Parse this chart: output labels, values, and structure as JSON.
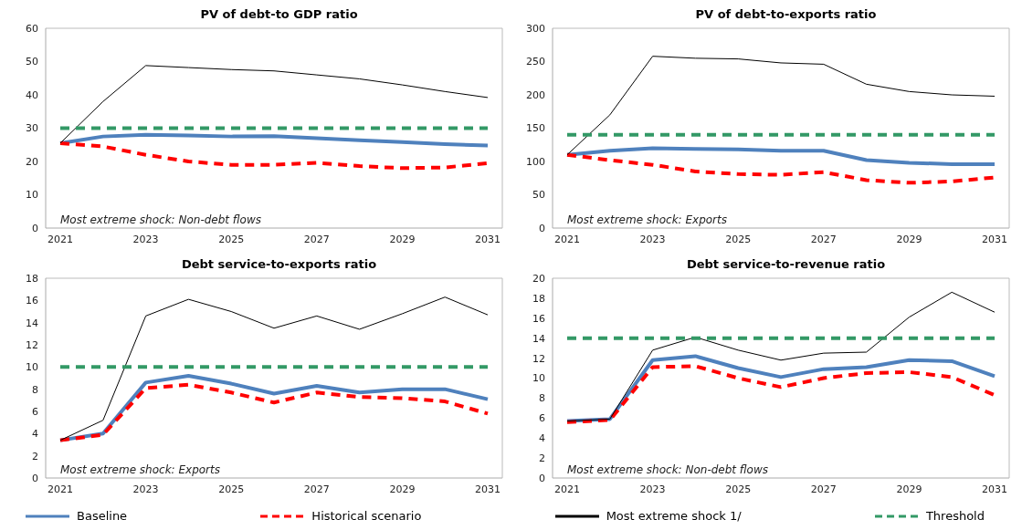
{
  "chart_data": [
    {
      "type": "line",
      "title": "PV of debt-to GDP ratio",
      "categories": [
        "2021",
        null,
        "2023",
        null,
        "2025",
        null,
        "2027",
        null,
        "2029",
        null,
        "2031"
      ],
      "ylim": [
        0,
        60
      ],
      "yticks": [
        0,
        10,
        20,
        30,
        40,
        50,
        60
      ],
      "grid": false,
      "legend": "bottom",
      "annotations": [
        "Most extreme shock: Non-debt flows"
      ],
      "series": [
        {
          "name": "Baseline",
          "color": "#4f81bd",
          "line_style": "solid",
          "values": [
            25.5,
            27.5,
            28,
            27.8,
            27.5,
            27.6,
            27,
            26.4,
            25.8,
            25.2,
            24.8
          ]
        },
        {
          "name": "Historical scenario",
          "color": "#ff0000",
          "line_style": "dashed",
          "values": [
            25.5,
            24.5,
            22,
            20,
            19,
            19,
            19.6,
            18.6,
            18,
            18.2,
            19.5
          ]
        },
        {
          "name": "Most extreme shock 1/",
          "color": "#000000",
          "line_style": "solid",
          "values": [
            25.5,
            38,
            48.8,
            48.2,
            47.6,
            47.2,
            46,
            44.8,
            43,
            41,
            39.2
          ]
        },
        {
          "name": "Threshold",
          "color": "#339966",
          "line_style": "dashed",
          "values": [
            30,
            30,
            30,
            30,
            30,
            30,
            30,
            30,
            30,
            30,
            30
          ]
        }
      ]
    },
    {
      "type": "line",
      "title": "PV of debt-to-exports ratio",
      "categories": [
        "2021",
        null,
        "2023",
        null,
        "2025",
        null,
        "2027",
        null,
        "2029",
        null,
        "2031"
      ],
      "ylim": [
        0,
        300
      ],
      "yticks": [
        0,
        50,
        100,
        150,
        200,
        250,
        300
      ],
      "grid": false,
      "annotations": [
        "Most extreme shock: Exports"
      ],
      "series": [
        {
          "color": "#4f81bd",
          "line_style": "solid",
          "values": [
            110,
            116,
            120,
            119,
            118,
            116,
            116,
            102,
            98,
            96,
            96
          ]
        },
        {
          "color": "#ff0000",
          "line_style": "dashed",
          "values": [
            110,
            102,
            95,
            85,
            81,
            80,
            84,
            72,
            68,
            70,
            76
          ]
        },
        {
          "color": "#000000",
          "line_style": "solid",
          "values": [
            110,
            170,
            258,
            255,
            254,
            248,
            246,
            216,
            205,
            200,
            198
          ]
        },
        {
          "color": "#339966",
          "line_style": "dashed",
          "values": [
            140,
            140,
            140,
            140,
            140,
            140,
            140,
            140,
            140,
            140,
            140
          ]
        }
      ]
    },
    {
      "type": "line",
      "title": "Debt service-to-exports ratio",
      "categories": [
        "2021",
        null,
        "2023",
        null,
        "2025",
        null,
        "2027",
        null,
        "2029",
        null,
        "2031"
      ],
      "ylim": [
        0,
        18
      ],
      "yticks": [
        0,
        2,
        4,
        6,
        8,
        10,
        12,
        14,
        16,
        18
      ],
      "grid": false,
      "annotations": [
        "Most extreme shock: Exports"
      ],
      "series": [
        {
          "color": "#4f81bd",
          "line_style": "solid",
          "values": [
            3.4,
            4,
            8.6,
            9.2,
            8.5,
            7.6,
            8.3,
            7.7,
            8,
            8,
            7.1
          ]
        },
        {
          "color": "#ff0000",
          "line_style": "dashed",
          "values": [
            3.4,
            3.9,
            8.1,
            8.4,
            7.7,
            6.8,
            7.7,
            7.3,
            7.2,
            6.9,
            5.8
          ]
        },
        {
          "color": "#000000",
          "line_style": "solid",
          "values": [
            3.4,
            5.2,
            14.6,
            16.1,
            15,
            13.5,
            14.6,
            13.4,
            14.8,
            16.3,
            14.7
          ]
        },
        {
          "color": "#339966",
          "line_style": "dashed",
          "values": [
            10,
            10,
            10,
            10,
            10,
            10,
            10,
            10,
            10,
            10,
            10
          ]
        }
      ]
    },
    {
      "type": "line",
      "title": "Debt service-to-revenue ratio",
      "categories": [
        "2021",
        null,
        "2023",
        null,
        "2025",
        null,
        "2027",
        null,
        "2029",
        null,
        "2031"
      ],
      "ylim": [
        0,
        20
      ],
      "yticks": [
        0,
        2,
        4,
        6,
        8,
        10,
        12,
        14,
        16,
        18,
        20
      ],
      "grid": false,
      "annotations": [
        "Most extreme shock: Non-debt flows"
      ],
      "series": [
        {
          "color": "#4f81bd",
          "line_style": "solid",
          "values": [
            5.7,
            5.9,
            11.8,
            12.2,
            11,
            10.1,
            10.9,
            11.1,
            11.8,
            11.7,
            10.2
          ]
        },
        {
          "color": "#ff0000",
          "line_style": "dashed",
          "values": [
            5.6,
            5.8,
            11.1,
            11.2,
            10,
            9.1,
            10,
            10.5,
            10.6,
            10.1,
            8.3
          ]
        },
        {
          "color": "#000000",
          "line_style": "solid",
          "values": [
            5.7,
            5.9,
            12.8,
            14.1,
            12.8,
            11.8,
            12.5,
            12.6,
            16.1,
            18.6,
            16.6
          ]
        },
        {
          "color": "#339966",
          "line_style": "dashed",
          "values": [
            14,
            14,
            14,
            14,
            14,
            14,
            14,
            14,
            14,
            14,
            14
          ]
        }
      ]
    }
  ]
}
